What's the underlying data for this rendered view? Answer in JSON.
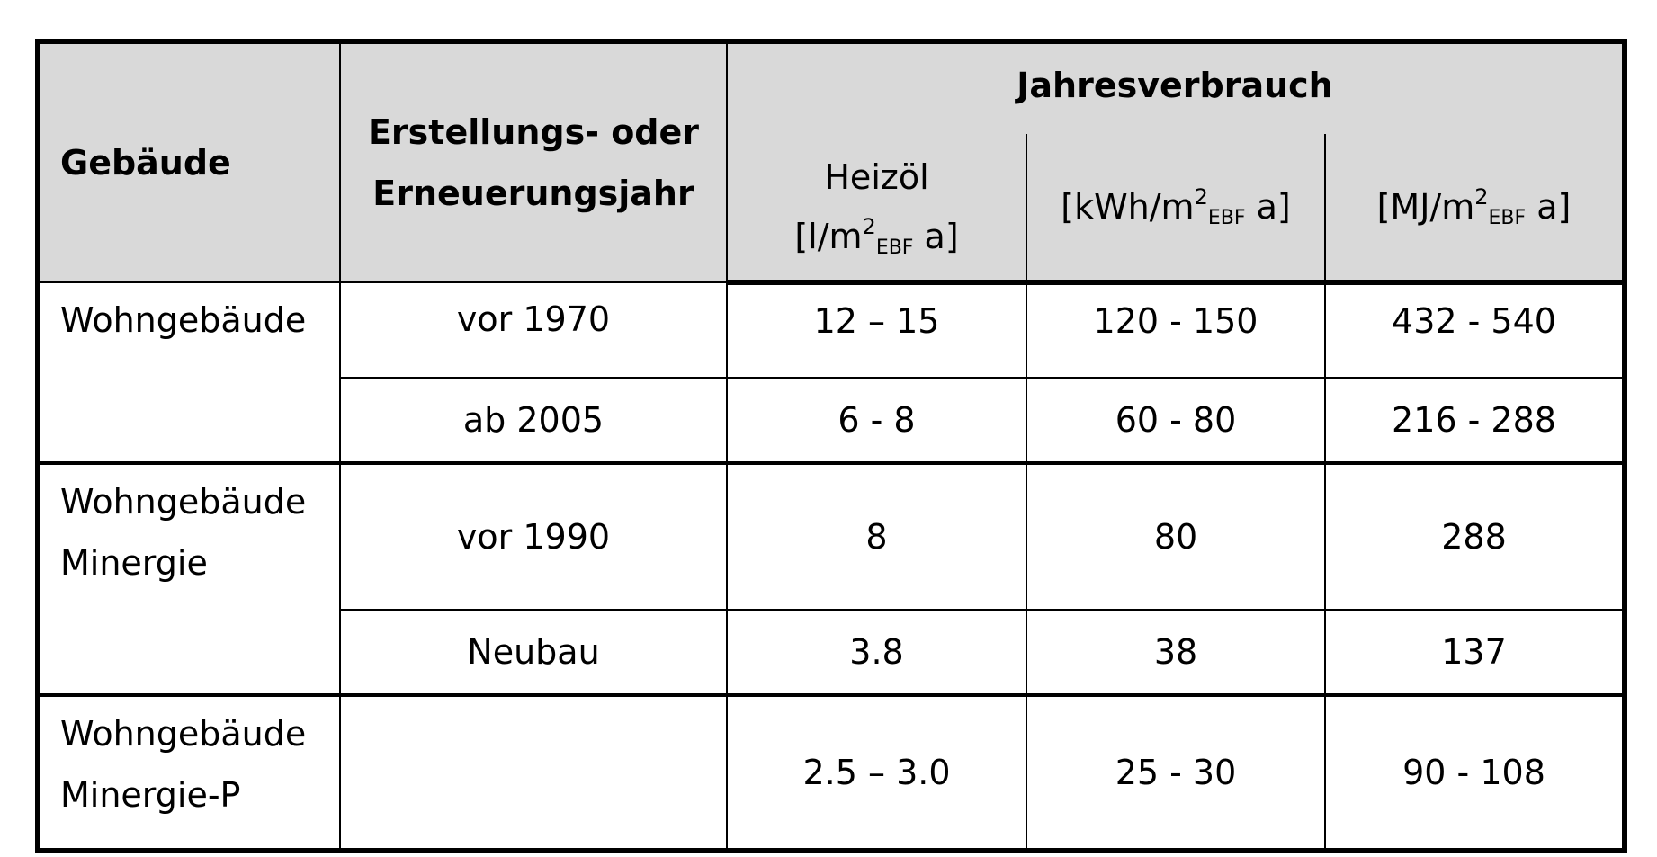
{
  "header": {
    "gebaeude": "Gebäude",
    "jahr_line1": "Erstellungs- oder",
    "jahr_line2": "Erneuerungsjahr",
    "jahresverbrauch": "Jahresverbrauch",
    "heizoel": "Heizöl",
    "unit_l_open": "[l/m",
    "unit_kwh_open": "[kWh/m",
    "unit_mj_open": "[MJ/m",
    "sup": "2",
    "sub": "EBF",
    "unit_close": " a]"
  },
  "rows": [
    {
      "gebaeude_l1": "Wohngebäude",
      "gebaeude_l2": "",
      "jahr": "vor 1970",
      "heizoel": "12 – 15",
      "kwh": "120 - 150",
      "mj": "432 - 540"
    },
    {
      "jahr": "ab 2005",
      "heizoel": "6 - 8",
      "kwh": "60 - 80",
      "mj": "216 - 288"
    },
    {
      "gebaeude_l1": "Wohngebäude",
      "gebaeude_l2": "Minergie",
      "jahr": "vor 1990",
      "heizoel": "8",
      "kwh": "80",
      "mj": "288"
    },
    {
      "jahr": "Neubau",
      "heizoel": "3.8",
      "kwh": "38",
      "mj": "137"
    },
    {
      "gebaeude_l1": "Wohngebäude",
      "gebaeude_l2": "Minergie-P",
      "jahr": "",
      "heizoel": "2.5 – 3.0",
      "kwh": "25 - 30",
      "mj": "90 - 108"
    }
  ]
}
